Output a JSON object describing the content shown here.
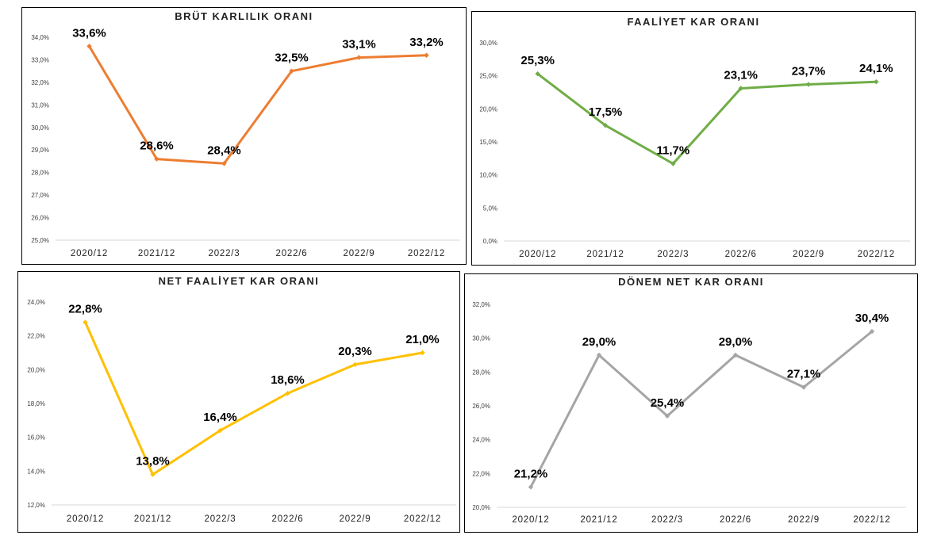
{
  "chart_data": [
    {
      "type": "line",
      "title": "BRÜT KARLILIK ORANI",
      "categories": [
        "2020/12",
        "2021/12",
        "2022/3",
        "2022/6",
        "2022/9",
        "2022/12"
      ],
      "values": [
        33.6,
        28.6,
        28.4,
        32.5,
        33.1,
        33.2
      ],
      "data_labels": [
        "33,6%",
        "28,6%",
        "28,4%",
        "32,5%",
        "33,1%",
        "33,2%"
      ],
      "ylim": [
        25,
        34
      ],
      "ytick_values": [
        25,
        26,
        27,
        28,
        29,
        30,
        31,
        32,
        33,
        34
      ],
      "ytick_labels": [
        "25,0%",
        "26,0%",
        "27,0%",
        "28,0%",
        "29,0%",
        "30,0%",
        "31,0%",
        "32,0%",
        "33,0%",
        "34,0%"
      ],
      "color": "#ED7D31",
      "grid": false,
      "legend": "none"
    },
    {
      "type": "line",
      "title": "FAALİYET KAR ORANI",
      "categories": [
        "2020/12",
        "2021/12",
        "2022/3",
        "2022/6",
        "2022/9",
        "2022/12"
      ],
      "values": [
        25.3,
        17.5,
        11.7,
        23.1,
        23.7,
        24.1
      ],
      "data_labels": [
        "25,3%",
        "17,5%",
        "11,7%",
        "23,1%",
        "23,7%",
        "24,1%"
      ],
      "ylim": [
        0,
        30
      ],
      "ytick_values": [
        0,
        5,
        10,
        15,
        20,
        25,
        30
      ],
      "ytick_labels": [
        "0,0%",
        "5,0%",
        "10,0%",
        "15,0%",
        "20,0%",
        "25,0%",
        "30,0%"
      ],
      "color": "#70AD47",
      "grid": false,
      "legend": "none"
    },
    {
      "type": "line",
      "title": "NET FAALİYET KAR ORANI",
      "categories": [
        "2020/12",
        "2021/12",
        "2022/3",
        "2022/6",
        "2022/9",
        "2022/12"
      ],
      "values": [
        22.8,
        13.8,
        16.4,
        18.6,
        20.3,
        21.0
      ],
      "data_labels": [
        "22,8%",
        "13,8%",
        "16,4%",
        "18,6%",
        "20,3%",
        "21,0%"
      ],
      "ylim": [
        12,
        24
      ],
      "ytick_values": [
        12,
        14,
        16,
        18,
        20,
        22,
        24
      ],
      "ytick_labels": [
        "12,0%",
        "14,0%",
        "16,0%",
        "18,0%",
        "20,0%",
        "22,0%",
        "24,0%"
      ],
      "color": "#FFC000",
      "grid": false,
      "legend": "none"
    },
    {
      "type": "line",
      "title": "DÖNEM NET KAR ORANI",
      "categories": [
        "2020/12",
        "2021/12",
        "2022/3",
        "2022/6",
        "2022/9",
        "2022/12"
      ],
      "values": [
        21.2,
        29.0,
        25.4,
        29.0,
        27.1,
        30.4
      ],
      "data_labels": [
        "21,2%",
        "29,0%",
        "25,4%",
        "29,0%",
        "27,1%",
        "30,4%"
      ],
      "ylim": [
        20,
        32
      ],
      "ytick_values": [
        20,
        22,
        24,
        26,
        28,
        30,
        32
      ],
      "ytick_labels": [
        "20,0%",
        "22,0%",
        "24,0%",
        "26,0%",
        "28,0%",
        "30,0%",
        "32,0%"
      ],
      "color": "#A5A5A5",
      "grid": false,
      "legend": "none"
    }
  ]
}
